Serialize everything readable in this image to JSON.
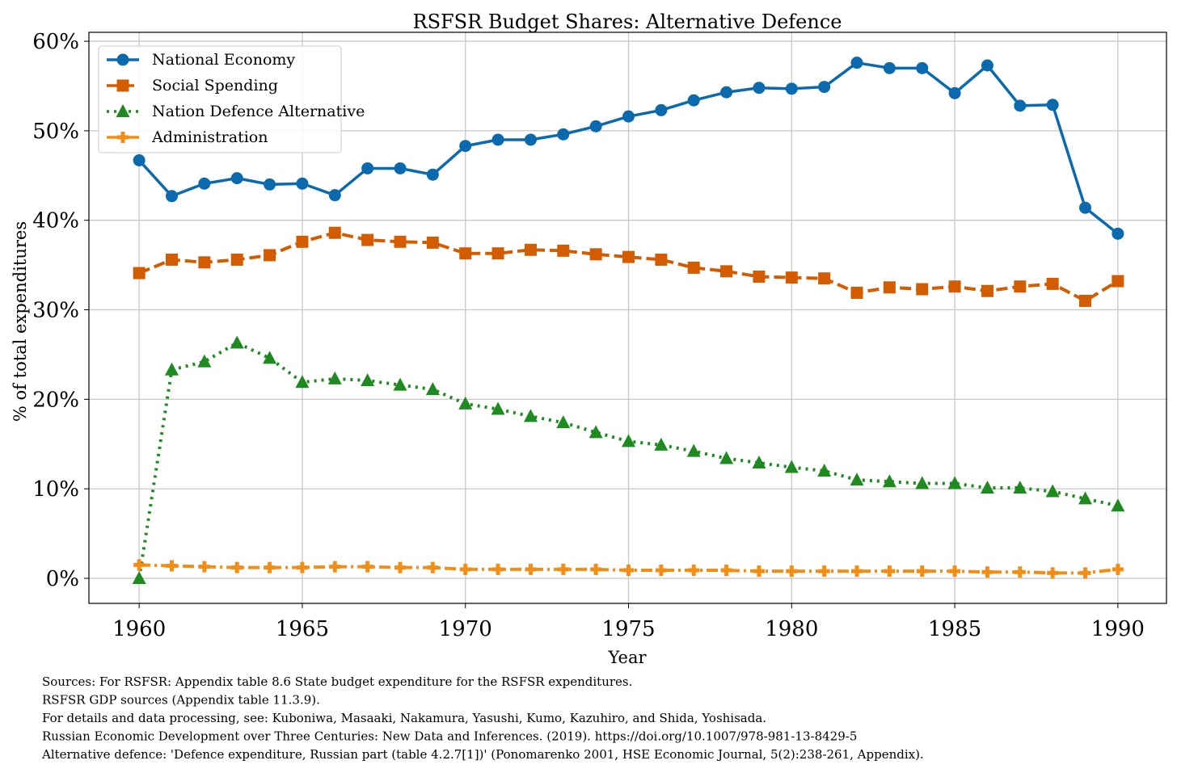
{
  "chart_data": {
    "type": "line",
    "title": "RSFSR Budget Shares: Alternative Defence",
    "xlabel": "Year",
    "ylabel": "% of total expenditures",
    "xlim": [
      1958.46,
      1991.49
    ],
    "ylim": [
      -2.8,
      61
    ],
    "xticks": [
      1960,
      1965,
      1970,
      1975,
      1980,
      1985,
      1990
    ],
    "xtick_labels": [
      "1960",
      "1965",
      "1970",
      "1975",
      "1980",
      "1985",
      "1990"
    ],
    "yticks": [
      0,
      10,
      20,
      30,
      40,
      50,
      60
    ],
    "ytick_labels": [
      "0%",
      "10%",
      "20%",
      "30%",
      "40%",
      "50%",
      "60%"
    ],
    "grid": true,
    "legend_position": "top-left",
    "x": [
      1960,
      1961,
      1962,
      1963,
      1964,
      1965,
      1966,
      1967,
      1968,
      1969,
      1970,
      1971,
      1972,
      1973,
      1974,
      1975,
      1976,
      1977,
      1978,
      1979,
      1980,
      1981,
      1982,
      1983,
      1984,
      1985,
      1986,
      1987,
      1988,
      1989,
      1990
    ],
    "series": [
      {
        "name": "National Economy",
        "color": "#0a6aad",
        "marker": "circle",
        "dash": "solid",
        "values": [
          46.7,
          42.7,
          44.1,
          44.7,
          44.0,
          44.1,
          42.8,
          45.8,
          45.8,
          45.1,
          48.3,
          49.0,
          49.0,
          49.6,
          50.5,
          51.6,
          52.3,
          53.4,
          54.3,
          54.8,
          54.7,
          54.9,
          57.6,
          57.0,
          57.0,
          54.2,
          57.3,
          52.8,
          52.9,
          41.4,
          38.5
        ]
      },
      {
        "name": "Social Spending",
        "color": "#d45c00",
        "marker": "square",
        "dash": "dashed",
        "values": [
          34.1,
          35.6,
          35.3,
          35.6,
          36.1,
          37.6,
          38.6,
          37.8,
          37.6,
          37.5,
          36.3,
          36.3,
          36.7,
          36.6,
          36.2,
          35.9,
          35.6,
          34.7,
          34.3,
          33.7,
          33.6,
          33.5,
          31.9,
          32.5,
          32.3,
          32.6,
          32.1,
          32.6,
          32.9,
          31.0,
          33.2
        ]
      },
      {
        "name": "Nation Defence Alternative",
        "color": "#1f8a1f",
        "marker": "triangle",
        "dash": "dotted",
        "values": [
          0.0,
          23.3,
          24.2,
          26.3,
          24.6,
          21.9,
          22.3,
          22.1,
          21.6,
          21.1,
          19.5,
          18.9,
          18.1,
          17.4,
          16.3,
          15.3,
          14.9,
          14.2,
          13.4,
          12.9,
          12.4,
          12.0,
          11.0,
          10.8,
          10.6,
          10.6,
          10.1,
          10.1,
          9.7,
          8.9,
          8.1
        ]
      },
      {
        "name": "Administration",
        "color": "#f28e16",
        "marker": "plus",
        "dash": "dashdot",
        "values": [
          1.5,
          1.4,
          1.3,
          1.2,
          1.2,
          1.2,
          1.3,
          1.3,
          1.2,
          1.2,
          1.0,
          1.0,
          1.0,
          1.0,
          1.0,
          0.9,
          0.9,
          0.9,
          0.9,
          0.8,
          0.8,
          0.8,
          0.8,
          0.8,
          0.8,
          0.8,
          0.7,
          0.7,
          0.6,
          0.6,
          1.0
        ]
      }
    ],
    "notes": [
      "Sources: For RSFSR: Appendix table 8.6 State budget expenditure for the RSFSR expenditures.",
      "RSFSR GDP sources (Appendix table 11.3.9).",
      "For details and data processing, see: Kuboniwa, Masaaki, Nakamura, Yasushi, Kumo, Kazuhiro, and Shida, Yoshisada.",
      "Russian Economic Development over Three Centuries: New Data and Inferences. (2019). https://doi.org/10.1007/978-981-13-8429-5",
      "Alternative defence: 'Defence expenditure, Russian part (table 4.2.7[1])' (Ponomarenko 2001, HSE Economic Journal, 5(2):238-261, Appendix)."
    ]
  }
}
